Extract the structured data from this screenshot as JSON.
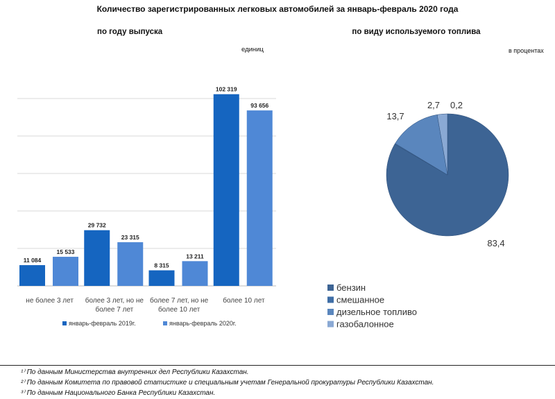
{
  "title": "Количество зарегистрированных легковых автомобилей за январь-февраль 2020 года",
  "footnotes": [
    "¹⁾ По данным Министерства внутренних дел Республики Казахстан.",
    "²⁾ По данным Комитета по правовой статистике и специальным учетам Генеральной прокуратуры Республики Казахстан.",
    "³⁾ По данным Национального Банка Республики Казахстан."
  ],
  "chart_data": [
    {
      "type": "bar",
      "title": "по году выпуска",
      "unit": "единиц",
      "categories": [
        [
          "не более 3 лет"
        ],
        [
          "более 3 лет, но не",
          "более 7 лет"
        ],
        [
          "более 7 лет, но не",
          "более 10 лет"
        ],
        [
          "более 10 лет"
        ]
      ],
      "series": [
        {
          "name": "январь-февраль 2019г.",
          "color": "#1565c0",
          "values": [
            11084,
            29732,
            8315,
            102319
          ],
          "labels": [
            "11 084",
            "29 732",
            "8 315",
            "102 319"
          ]
        },
        {
          "name": "январь-февраль 2020г.",
          "color": "#4f88d6",
          "values": [
            15533,
            23315,
            13211,
            93656
          ],
          "labels": [
            "15 533",
            "23 315",
            "13 211",
            "93 656"
          ]
        }
      ],
      "ylim": [
        0,
        100000
      ],
      "grid": true,
      "legend": "bottom"
    },
    {
      "type": "pie",
      "title": "по виду используемого топлива",
      "unit": "в процентах",
      "categories": [
        "бензин",
        "смешанное",
        "дизельное топливо",
        "газобалонное"
      ],
      "values": [
        83.4,
        0.2,
        13.7,
        2.7
      ],
      "labels": [
        "83,4",
        "0,2",
        "13,7",
        "2,7"
      ],
      "colors": [
        "#3d6494",
        "#3f6ea6",
        "#5a86bd",
        "#8aa9d4"
      ],
      "legend": "bottom-left"
    }
  ]
}
